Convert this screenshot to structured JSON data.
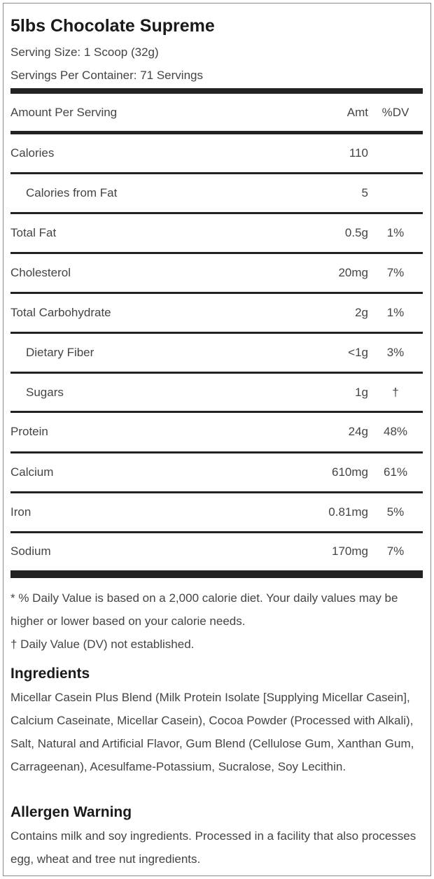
{
  "product": {
    "title": "5lbs Chocolate Supreme",
    "serving_size": "Serving Size: 1 Scoop (32g)",
    "servings_per_container": "Servings Per Container: 71 Servings"
  },
  "table": {
    "header": {
      "name": "Amount Per Serving",
      "amt": "Amt",
      "dv": "%DV"
    },
    "rows": [
      {
        "name": "Calories",
        "amt": "110",
        "dv": ""
      },
      {
        "name": "Calories from Fat",
        "amt": "5",
        "dv": ""
      },
      {
        "name": "Total Fat",
        "amt": "0.5g",
        "dv": "1%"
      },
      {
        "name": "Cholesterol",
        "amt": "20mg",
        "dv": "7%"
      },
      {
        "name": "Total Carbohydrate",
        "amt": "2g",
        "dv": "1%"
      },
      {
        "name": "Dietary Fiber",
        "amt": "<1g",
        "dv": "3%"
      },
      {
        "name": "Sugars",
        "amt": "1g",
        "dv": "†"
      },
      {
        "name": "Protein",
        "amt": "24g",
        "dv": "48%"
      },
      {
        "name": "Calcium",
        "amt": "610mg",
        "dv": "61%"
      },
      {
        "name": "Iron",
        "amt": "0.81mg",
        "dv": "5%"
      },
      {
        "name": "Sodium",
        "amt": "170mg",
        "dv": "7%"
      }
    ]
  },
  "footnotes": {
    "daily_value": "* % Daily Value is based on a 2,000 calorie diet. Your daily values may be higher or lower based on your calorie needs.",
    "not_established": "† Daily Value (DV) not established."
  },
  "ingredients": {
    "heading": "Ingredients",
    "text": "Micellar Casein Plus Blend (Milk Protein Isolate [Supplying Micellar Casein], Calcium Caseinate, Micellar Casein), Cocoa Powder (Processed with Alkali), Salt, Natural and Artificial Flavor, Gum Blend (Cellulose Gum, Xanthan Gum, Carrageenan), Acesulfame-Potassium, Sucralose, Soy Lecithin."
  },
  "allergen": {
    "heading": "Allergen Warning",
    "text": "Contains milk and soy ingredients. Processed in a facility that also processes egg, wheat and tree nut ingredients."
  }
}
